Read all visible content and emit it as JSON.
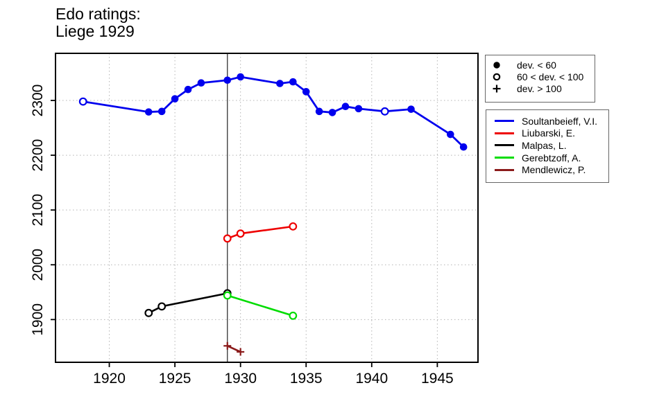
{
  "page": {
    "background": "#ffffff"
  },
  "chart_data": {
    "type": "line",
    "title_line1": "Edo ratings:",
    "title_line2": "Liege 1929",
    "xlabel": "",
    "ylabel": "",
    "x_ticks": [
      1920,
      1925,
      1930,
      1935,
      1940,
      1945
    ],
    "y_ticks": [
      1900,
      2000,
      2100,
      2200,
      2300
    ],
    "xlim": [
      1915.9,
      1948.1
    ],
    "ylim": [
      1822,
      2386
    ],
    "grid": "dotted",
    "event_year_line": 1929,
    "marker_legend": [
      {
        "symbol": "filled-circle",
        "label": "dev. < 60"
      },
      {
        "symbol": "open-circle",
        "label": "60 < dev. < 100"
      },
      {
        "symbol": "plus",
        "label": "dev. > 100"
      }
    ],
    "series": [
      {
        "name": "Soultanbeieff, V.I.",
        "color": "#0000EE",
        "line_width": 2.8,
        "points": [
          {
            "year": 1918,
            "rating": 2298,
            "marker": "open"
          },
          {
            "year": 1923,
            "rating": 2279,
            "marker": "filled"
          },
          {
            "year": 1924,
            "rating": 2280,
            "marker": "filled"
          },
          {
            "year": 1925,
            "rating": 2303,
            "marker": "filled"
          },
          {
            "year": 1926,
            "rating": 2320,
            "marker": "filled"
          },
          {
            "year": 1927,
            "rating": 2332,
            "marker": "filled"
          },
          {
            "year": 1929,
            "rating": 2337,
            "marker": "filled"
          },
          {
            "year": 1930,
            "rating": 2343,
            "marker": "filled"
          },
          {
            "year": 1933,
            "rating": 2331,
            "marker": "filled"
          },
          {
            "year": 1934,
            "rating": 2334,
            "marker": "filled"
          },
          {
            "year": 1935,
            "rating": 2316,
            "marker": "filled"
          },
          {
            "year": 1936,
            "rating": 2280,
            "marker": "filled"
          },
          {
            "year": 1937,
            "rating": 2278,
            "marker": "filled"
          },
          {
            "year": 1938,
            "rating": 2289,
            "marker": "filled"
          },
          {
            "year": 1939,
            "rating": 2285,
            "marker": "filled"
          },
          {
            "year": 1941,
            "rating": 2280,
            "marker": "open"
          },
          {
            "year": 1943,
            "rating": 2284,
            "marker": "filled"
          },
          {
            "year": 1946,
            "rating": 2238,
            "marker": "filled"
          },
          {
            "year": 1947,
            "rating": 2215,
            "marker": "filled"
          }
        ]
      },
      {
        "name": "Liubarski, E.",
        "color": "#EE0000",
        "line_width": 2.6,
        "points": [
          {
            "year": 1929,
            "rating": 2048,
            "marker": "open"
          },
          {
            "year": 1930,
            "rating": 2057,
            "marker": "open"
          },
          {
            "year": 1934,
            "rating": 2070,
            "marker": "open"
          }
        ]
      },
      {
        "name": "Malpas, L.",
        "color": "#000000",
        "line_width": 2.6,
        "points": [
          {
            "year": 1923,
            "rating": 1912,
            "marker": "open"
          },
          {
            "year": 1924,
            "rating": 1924,
            "marker": "open"
          },
          {
            "year": 1929,
            "rating": 1948,
            "marker": "open"
          }
        ]
      },
      {
        "name": "Gerebtzoff, A.",
        "color": "#00DC00",
        "line_width": 2.6,
        "points": [
          {
            "year": 1929,
            "rating": 1944,
            "marker": "open"
          },
          {
            "year": 1934,
            "rating": 1907,
            "marker": "open"
          }
        ]
      },
      {
        "name": "Mendlewicz, P.",
        "color": "#8B1A1A",
        "line_width": 2.6,
        "points": [
          {
            "year": 1929,
            "rating": 1852,
            "marker": "plus"
          },
          {
            "year": 1930,
            "rating": 1841,
            "marker": "plus"
          }
        ]
      }
    ]
  }
}
